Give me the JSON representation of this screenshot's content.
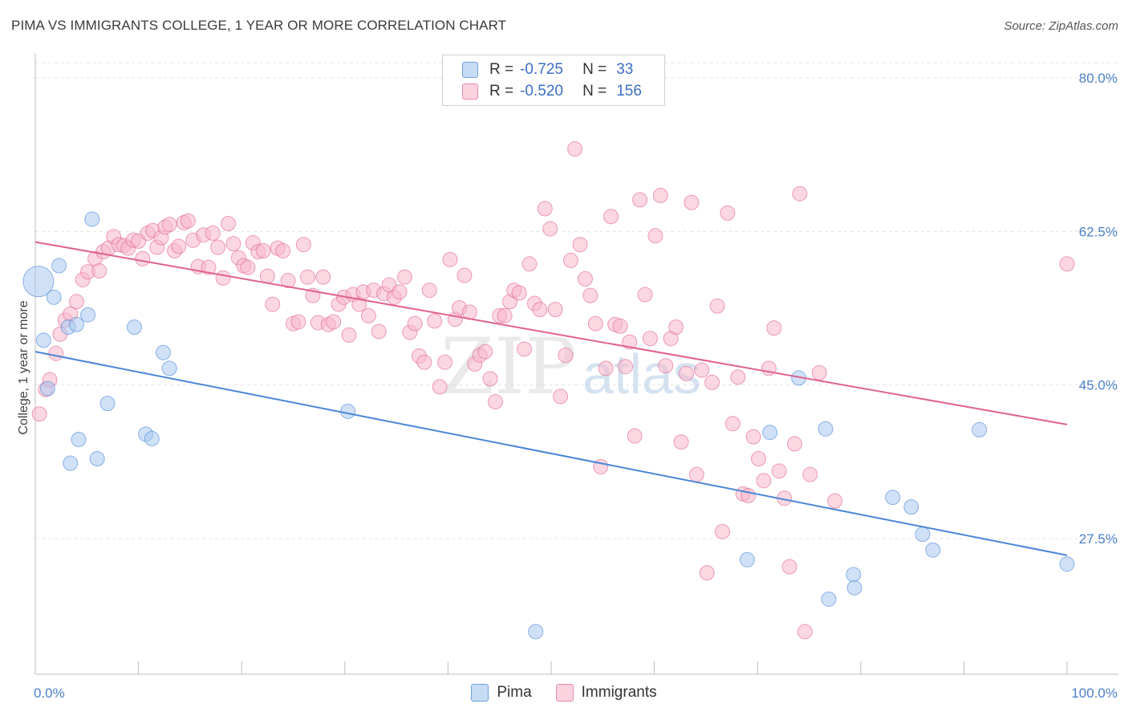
{
  "header": {
    "title": "PIMA VS IMMIGRANTS COLLEGE, 1 YEAR OR MORE CORRELATION CHART",
    "source": "Source: ZipAtlas.com"
  },
  "watermark": {
    "zip": "ZIP",
    "atlas": "atlas"
  },
  "legend": [
    {
      "r_label": "R =",
      "r_value": "-0.725",
      "n_label": "N =",
      "n_value": "33",
      "color": "#a9c8f0"
    },
    {
      "r_label": "R =",
      "r_value": "-0.520",
      "n_label": "N =",
      "n_value": "156",
      "color": "#f7b7cb"
    }
  ],
  "bottom_legend": [
    {
      "label": "Pima",
      "color": "#a9c8f0"
    },
    {
      "label": "Immigrants",
      "color": "#f7b7cb"
    }
  ],
  "chart_data": {
    "type": "scatter",
    "title": "PIMA VS IMMIGRANTS COLLEGE, 1 YEAR OR MORE CORRELATION CHART",
    "xlabel": "",
    "ylabel": "College, 1 year or more",
    "x_tick_labels": [
      "0.0%",
      "100.0%"
    ],
    "y_tick_labels": [
      "80.0%",
      "62.5%",
      "45.0%",
      "27.5%"
    ],
    "y_ticks": [
      80.0,
      62.5,
      45.0,
      27.5
    ],
    "xlim": [
      0,
      100
    ],
    "ylim": [
      10,
      83
    ],
    "grid": true,
    "legend_position": "top-center",
    "series": [
      {
        "name": "Pima",
        "color": "#4a86d6",
        "fill": "#a9c8f0",
        "trend": {
          "x": [
            0,
            100
          ],
          "y": [
            48.8,
            25.6
          ]
        },
        "points": [
          [
            0.3,
            56.8,
            3
          ],
          [
            0.8,
            50.1,
            1
          ],
          [
            1.2,
            44.6,
            1
          ],
          [
            1.8,
            55.0,
            1
          ],
          [
            2.3,
            58.6,
            1
          ],
          [
            3.2,
            51.6,
            1
          ],
          [
            3.4,
            36.1,
            1
          ],
          [
            4.0,
            51.9,
            1
          ],
          [
            4.2,
            38.8,
            1
          ],
          [
            5.1,
            53.0,
            1
          ],
          [
            5.5,
            63.9,
            1
          ],
          [
            6.0,
            36.6,
            1
          ],
          [
            7.0,
            42.9,
            1
          ],
          [
            9.6,
            51.6,
            1
          ],
          [
            10.7,
            39.4,
            1
          ],
          [
            11.3,
            38.9,
            1
          ],
          [
            12.4,
            48.7,
            1
          ],
          [
            13.0,
            46.9,
            1
          ],
          [
            30.3,
            42.0,
            1
          ],
          [
            48.5,
            16.9,
            1
          ],
          [
            69.0,
            25.1,
            1
          ],
          [
            71.2,
            39.6,
            1
          ],
          [
            74.0,
            45.8,
            1
          ],
          [
            76.6,
            40.0,
            1
          ],
          [
            76.9,
            20.6,
            1
          ],
          [
            79.3,
            23.4,
            1
          ],
          [
            79.4,
            21.9,
            1
          ],
          [
            83.1,
            32.2,
            1
          ],
          [
            84.9,
            31.1,
            1
          ],
          [
            86.0,
            28.0,
            1
          ],
          [
            87.0,
            26.2,
            1
          ],
          [
            91.5,
            39.9,
            1
          ],
          [
            100.0,
            24.6,
            1
          ]
        ]
      },
      {
        "name": "Immigrants",
        "color": "#e0628f",
        "fill": "#f7b7cb",
        "trend": {
          "x": [
            0,
            100
          ],
          "y": [
            61.3,
            40.5
          ]
        },
        "points": [
          [
            0.4,
            41.7,
            1
          ],
          [
            1.0,
            44.5,
            1
          ],
          [
            1.4,
            45.6,
            1
          ],
          [
            2.0,
            48.6,
            1
          ],
          [
            2.4,
            50.8,
            1
          ],
          [
            2.9,
            52.4,
            1
          ],
          [
            3.4,
            53.1,
            1
          ],
          [
            4.0,
            54.5,
            1
          ],
          [
            4.6,
            57.0,
            1
          ],
          [
            5.1,
            57.9,
            1
          ],
          [
            5.8,
            59.4,
            1
          ],
          [
            6.2,
            58.0,
            1
          ],
          [
            6.6,
            60.2,
            1
          ],
          [
            7.1,
            60.6,
            1
          ],
          [
            7.6,
            61.9,
            1
          ],
          [
            8.1,
            61.0,
            1
          ],
          [
            8.6,
            60.9,
            1
          ],
          [
            9.0,
            60.6,
            1
          ],
          [
            9.5,
            61.5,
            1
          ],
          [
            10.0,
            61.4,
            1
          ],
          [
            10.4,
            59.4,
            1
          ],
          [
            10.9,
            62.3,
            1
          ],
          [
            11.4,
            62.6,
            1
          ],
          [
            11.8,
            60.7,
            1
          ],
          [
            12.2,
            61.8,
            1
          ],
          [
            12.6,
            63.0,
            1
          ],
          [
            13.0,
            63.3,
            1
          ],
          [
            13.5,
            60.3,
            1
          ],
          [
            13.9,
            60.8,
            1
          ],
          [
            14.4,
            63.5,
            1
          ],
          [
            14.8,
            63.7,
            1
          ],
          [
            15.3,
            61.5,
            1
          ],
          [
            15.8,
            58.5,
            1
          ],
          [
            16.3,
            62.1,
            1
          ],
          [
            16.8,
            58.4,
            1
          ],
          [
            17.2,
            62.3,
            1
          ],
          [
            17.7,
            60.7,
            1
          ],
          [
            18.2,
            57.2,
            1
          ],
          [
            18.7,
            63.4,
            1
          ],
          [
            19.2,
            61.1,
            1
          ],
          [
            19.7,
            59.5,
            1
          ],
          [
            20.2,
            58.6,
            1
          ],
          [
            20.6,
            58.4,
            1
          ],
          [
            21.1,
            61.2,
            1
          ],
          [
            21.6,
            60.2,
            1
          ],
          [
            22.1,
            60.3,
            1
          ],
          [
            22.5,
            57.4,
            1
          ],
          [
            23.0,
            54.2,
            1
          ],
          [
            23.5,
            60.6,
            1
          ],
          [
            24.0,
            60.3,
            1
          ],
          [
            24.5,
            56.9,
            1
          ],
          [
            25.0,
            52.0,
            1
          ],
          [
            25.5,
            52.2,
            1
          ],
          [
            26.0,
            61.0,
            1
          ],
          [
            26.4,
            57.3,
            1
          ],
          [
            26.9,
            55.2,
            1
          ],
          [
            27.4,
            52.1,
            1
          ],
          [
            27.9,
            57.3,
            1
          ],
          [
            28.4,
            51.9,
            1
          ],
          [
            28.9,
            52.2,
            1
          ],
          [
            29.4,
            54.2,
            1
          ],
          [
            29.9,
            55.0,
            1
          ],
          [
            30.4,
            50.7,
            1
          ],
          [
            30.8,
            55.3,
            1
          ],
          [
            31.4,
            54.2,
            1
          ],
          [
            31.8,
            55.6,
            1
          ],
          [
            32.3,
            52.9,
            1
          ],
          [
            32.8,
            55.8,
            1
          ],
          [
            33.3,
            51.1,
            1
          ],
          [
            33.8,
            55.4,
            1
          ],
          [
            34.3,
            56.4,
            1
          ],
          [
            34.8,
            55.0,
            1
          ],
          [
            35.3,
            55.6,
            1
          ],
          [
            35.8,
            57.3,
            1
          ],
          [
            36.3,
            51.0,
            1
          ],
          [
            36.8,
            52.0,
            1
          ],
          [
            37.2,
            48.3,
            1
          ],
          [
            37.7,
            47.6,
            1
          ],
          [
            38.2,
            55.8,
            1
          ],
          [
            38.7,
            52.3,
            1
          ],
          [
            39.2,
            44.8,
            1
          ],
          [
            39.7,
            47.6,
            1
          ],
          [
            40.2,
            59.3,
            1
          ],
          [
            40.7,
            52.5,
            1
          ],
          [
            41.1,
            53.8,
            1
          ],
          [
            41.6,
            57.5,
            1
          ],
          [
            42.1,
            53.3,
            1
          ],
          [
            42.6,
            47.4,
            1
          ],
          [
            43.1,
            48.4,
            1
          ],
          [
            43.6,
            48.8,
            1
          ],
          [
            44.1,
            45.7,
            1
          ],
          [
            44.6,
            43.1,
            1
          ],
          [
            45.0,
            52.9,
            1
          ],
          [
            45.5,
            52.9,
            1
          ],
          [
            46.0,
            54.5,
            1
          ],
          [
            46.4,
            55.8,
            1
          ],
          [
            46.9,
            55.5,
            1
          ],
          [
            47.4,
            49.1,
            1
          ],
          [
            47.9,
            58.8,
            1
          ],
          [
            48.4,
            54.3,
            1
          ],
          [
            48.9,
            53.6,
            1
          ],
          [
            49.4,
            65.1,
            1
          ],
          [
            49.9,
            62.8,
            1
          ],
          [
            50.4,
            53.6,
            1
          ],
          [
            50.9,
            43.7,
            1
          ],
          [
            51.4,
            48.4,
            1
          ],
          [
            51.9,
            59.2,
            1
          ],
          [
            52.3,
            71.9,
            1
          ],
          [
            52.8,
            61.0,
            1
          ],
          [
            53.3,
            57.1,
            1
          ],
          [
            53.8,
            55.2,
            1
          ],
          [
            54.3,
            52.0,
            1
          ],
          [
            54.8,
            35.7,
            1
          ],
          [
            55.3,
            46.9,
            1
          ],
          [
            55.8,
            64.2,
            1
          ],
          [
            56.2,
            51.9,
            1
          ],
          [
            56.7,
            51.7,
            1
          ],
          [
            57.2,
            47.1,
            1
          ],
          [
            57.6,
            49.9,
            1
          ],
          [
            58.1,
            39.2,
            1
          ],
          [
            58.6,
            66.1,
            1
          ],
          [
            59.1,
            55.3,
            1
          ],
          [
            59.6,
            50.3,
            1
          ],
          [
            60.1,
            62.0,
            1
          ],
          [
            60.6,
            66.6,
            1
          ],
          [
            61.1,
            47.2,
            1
          ],
          [
            61.6,
            50.3,
            1
          ],
          [
            62.1,
            51.6,
            1
          ],
          [
            62.6,
            38.5,
            1
          ],
          [
            63.1,
            46.3,
            1
          ],
          [
            63.6,
            65.8,
            1
          ],
          [
            64.1,
            34.8,
            1
          ],
          [
            64.6,
            46.7,
            1
          ],
          [
            65.1,
            23.6,
            1
          ],
          [
            65.6,
            45.3,
            1
          ],
          [
            66.1,
            54.0,
            1
          ],
          [
            66.6,
            28.3,
            1
          ],
          [
            67.1,
            64.6,
            1
          ],
          [
            67.6,
            40.6,
            1
          ],
          [
            68.1,
            45.9,
            1
          ],
          [
            68.6,
            32.6,
            1
          ],
          [
            69.1,
            32.4,
            1
          ],
          [
            69.6,
            39.1,
            1
          ],
          [
            70.1,
            36.6,
            1
          ],
          [
            70.6,
            34.1,
            1
          ],
          [
            71.1,
            46.9,
            1
          ],
          [
            71.6,
            51.5,
            1
          ],
          [
            72.1,
            35.2,
            1
          ],
          [
            72.6,
            32.1,
            1
          ],
          [
            73.1,
            24.3,
            1
          ],
          [
            73.6,
            38.3,
            1
          ],
          [
            74.1,
            66.8,
            1
          ],
          [
            74.6,
            16.9,
            1
          ],
          [
            75.1,
            34.8,
            1
          ],
          [
            76.0,
            46.4,
            1
          ],
          [
            77.5,
            31.8,
            1
          ],
          [
            100.0,
            58.8,
            1
          ]
        ]
      }
    ]
  }
}
